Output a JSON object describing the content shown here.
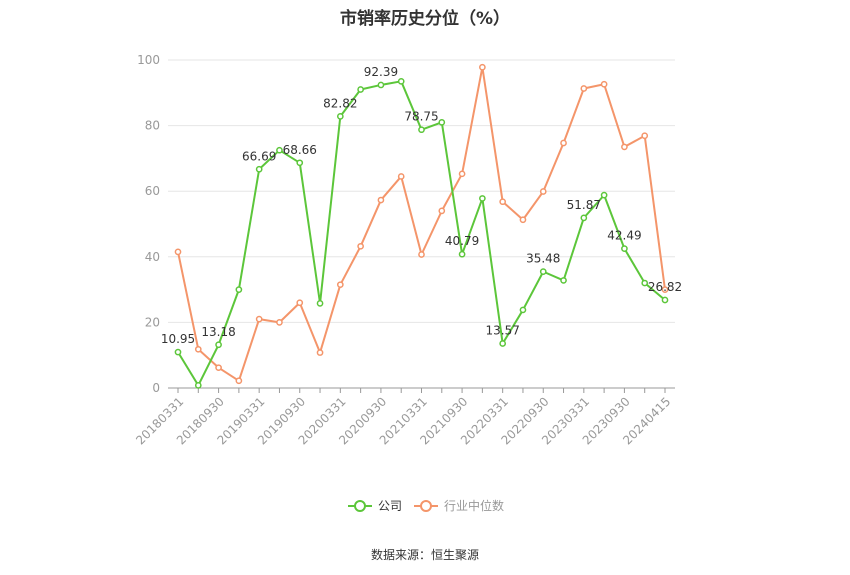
{
  "chart_data": {
    "type": "line",
    "title": "市销率历史分位（%）",
    "source": "数据来源：恒生聚源",
    "ylim": [
      0,
      100
    ],
    "yticks": [
      0,
      20,
      40,
      60,
      80,
      100
    ],
    "x": [
      "20180331",
      "20180630",
      "20180930",
      "20181231",
      "20190331",
      "20190630",
      "20190930",
      "20191231",
      "20200331",
      "20200630",
      "20200930",
      "20201231",
      "20210331",
      "20210630",
      "20210930",
      "20211231",
      "20220331",
      "20220630",
      "20220930",
      "20221231",
      "20230331",
      "20230630",
      "20230930",
      "20231231",
      "20240415"
    ],
    "xtick_labels": [
      "20180331",
      "20180930",
      "20190331",
      "20190930",
      "20200331",
      "20200930",
      "20210331",
      "20210930",
      "20220331",
      "20220930",
      "20230331",
      "20230930",
      "20240415"
    ],
    "grid": true,
    "legend_position": "bottom-center",
    "series": [
      {
        "name": "公司",
        "color": "#5cc63a",
        "values": [
          10.95,
          0.8,
          13.18,
          30.0,
          66.69,
          72.5,
          68.66,
          25.8,
          82.82,
          91.0,
          92.39,
          93.5,
          78.75,
          81.0,
          40.79,
          57.8,
          13.57,
          23.8,
          35.48,
          32.8,
          51.87,
          58.8,
          42.49,
          32.0,
          26.82
        ],
        "labels": [
          "10.95",
          "",
          "13.18",
          "",
          "66.69",
          "",
          "68.66",
          "",
          "82.82",
          "",
          "92.39",
          "",
          "78.75",
          "",
          "40.79",
          "",
          "13.57",
          "",
          "35.48",
          "",
          "51.87",
          "",
          "42.49",
          "",
          "26.82"
        ]
      },
      {
        "name": "行业中位数",
        "color": "#f4956a",
        "values": [
          41.5,
          11.8,
          6.2,
          2.2,
          21.0,
          20.0,
          26.0,
          10.8,
          31.5,
          43.2,
          57.3,
          64.5,
          40.7,
          54.0,
          65.3,
          97.8,
          56.8,
          51.3,
          59.9,
          74.7,
          91.3,
          92.6,
          73.5,
          76.9,
          30.0
        ]
      }
    ]
  }
}
